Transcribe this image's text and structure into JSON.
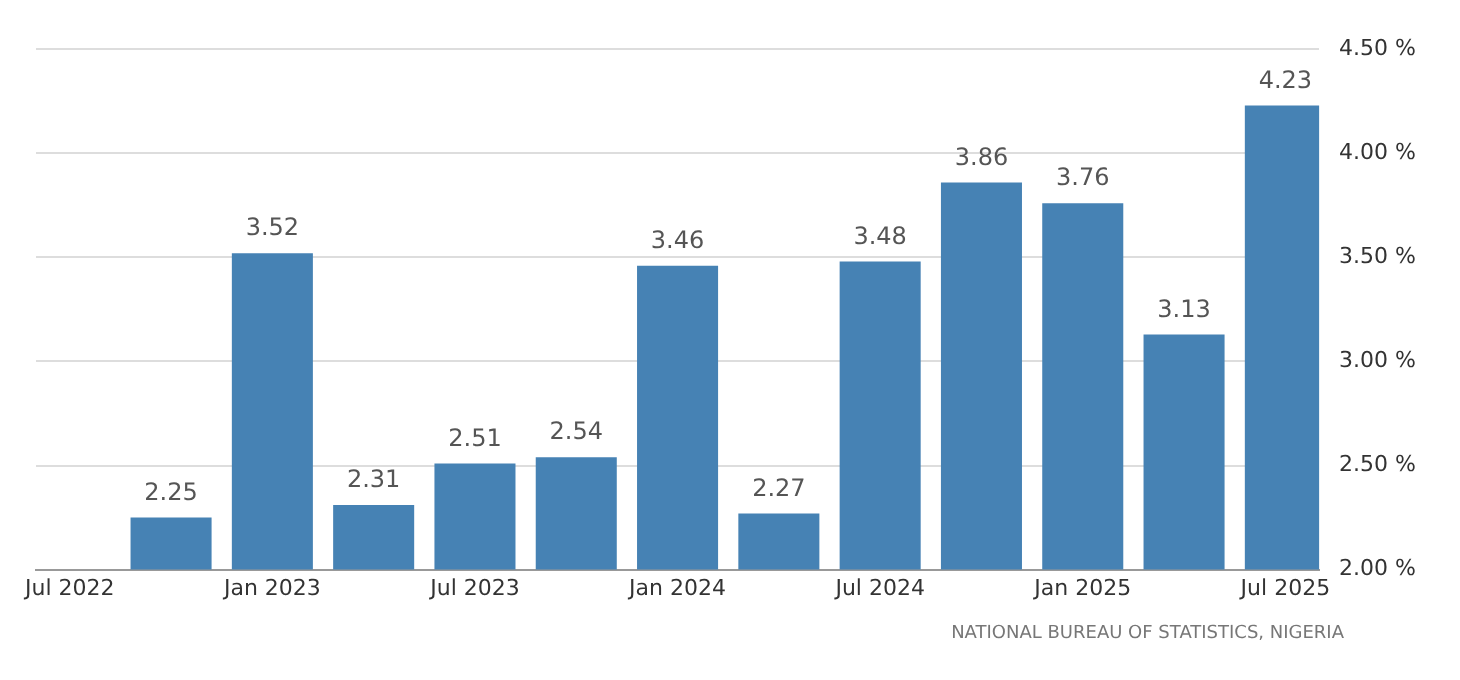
{
  "chart_data": {
    "type": "bar",
    "x": [
      "2022-10",
      "2023-01",
      "2023-04",
      "2023-07",
      "2023-10",
      "2024-01",
      "2024-04",
      "2024-07",
      "2024-10",
      "2025-01",
      "2025-04",
      "2025-07"
    ],
    "values": [
      2.25,
      3.52,
      2.31,
      2.51,
      2.54,
      3.46,
      2.27,
      3.48,
      3.86,
      3.76,
      3.13,
      4.23
    ],
    "color": "#4682b4",
    "xlim": [
      "2022-06",
      "2025-08"
    ],
    "xticks": [
      {
        "value": "2022-07",
        "label": "Jul 2022"
      },
      {
        "value": "2023-01",
        "label": "Jan 2023"
      },
      {
        "value": "2023-07",
        "label": "Jul 2023"
      },
      {
        "value": "2024-01",
        "label": "Jan 2024"
      },
      {
        "value": "2024-07",
        "label": "Jul 2024"
      },
      {
        "value": "2025-01",
        "label": "Jan 2025"
      },
      {
        "value": "2025-07",
        "label": "Jul 2025"
      }
    ],
    "ylim": [
      2.0,
      4.5
    ],
    "yticks": [
      {
        "value": 2.0,
        "label": "2.00 %"
      },
      {
        "value": 2.5,
        "label": "2.50 %"
      },
      {
        "value": 3.0,
        "label": "3.00 %"
      },
      {
        "value": 3.5,
        "label": "3.50 %"
      },
      {
        "value": 4.0,
        "label": "4.00 %"
      },
      {
        "value": 4.5,
        "label": "4.50 %"
      }
    ],
    "grid": "y",
    "data_labels": true,
    "legend": false,
    "annotations": [
      "NATIONAL BUREAU OF STATISTICS, NIGERIA"
    ]
  }
}
